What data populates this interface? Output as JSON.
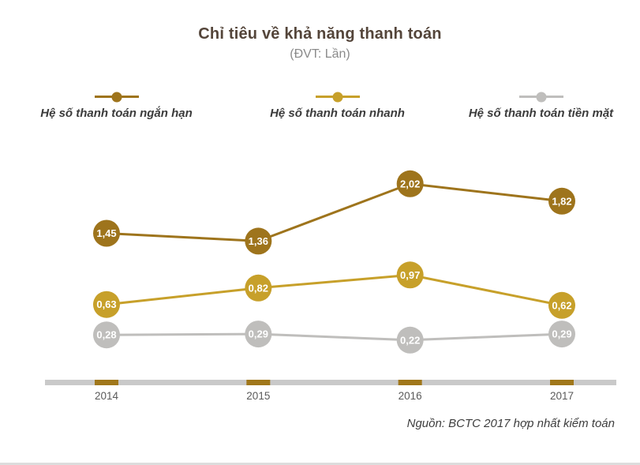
{
  "header": {
    "title": "Chỉ tiêu về khả năng thanh toán",
    "subtitle": "(ĐVT: Lần)"
  },
  "footer": {
    "source": "Nguồn: BCTC 2017 hợp nhất kiểm toán"
  },
  "chart_data": {
    "type": "line",
    "title": "Chỉ tiêu về khả năng thanh toán",
    "unit_note": "(ĐVT: Lần)",
    "categories": [
      "2014",
      "2015",
      "2016",
      "2017"
    ],
    "series": [
      {
        "name": "Hệ số thanh toán ngắn hạn",
        "color": "#9e741c",
        "values": [
          1.45,
          1.36,
          2.02,
          1.82
        ]
      },
      {
        "name": "Hệ số thanh toán nhanh",
        "color": "#c7a02a",
        "values": [
          0.63,
          0.82,
          0.97,
          0.62
        ]
      },
      {
        "name": "Hệ số thanh toán tiền mặt",
        "color": "#bfbebc",
        "values": [
          0.28,
          0.29,
          0.22,
          0.29
        ]
      }
    ],
    "value_decimal_separator": ",",
    "ylim": [
      0,
      2.3
    ],
    "legend_position": "top",
    "grid": false,
    "axis_bar_color": "#c9c9c9",
    "tick_color": "#a0771b",
    "category_label_color": "#5a5a5a",
    "marker_text_color": "#ffffff",
    "xlabel": "",
    "ylabel": ""
  }
}
